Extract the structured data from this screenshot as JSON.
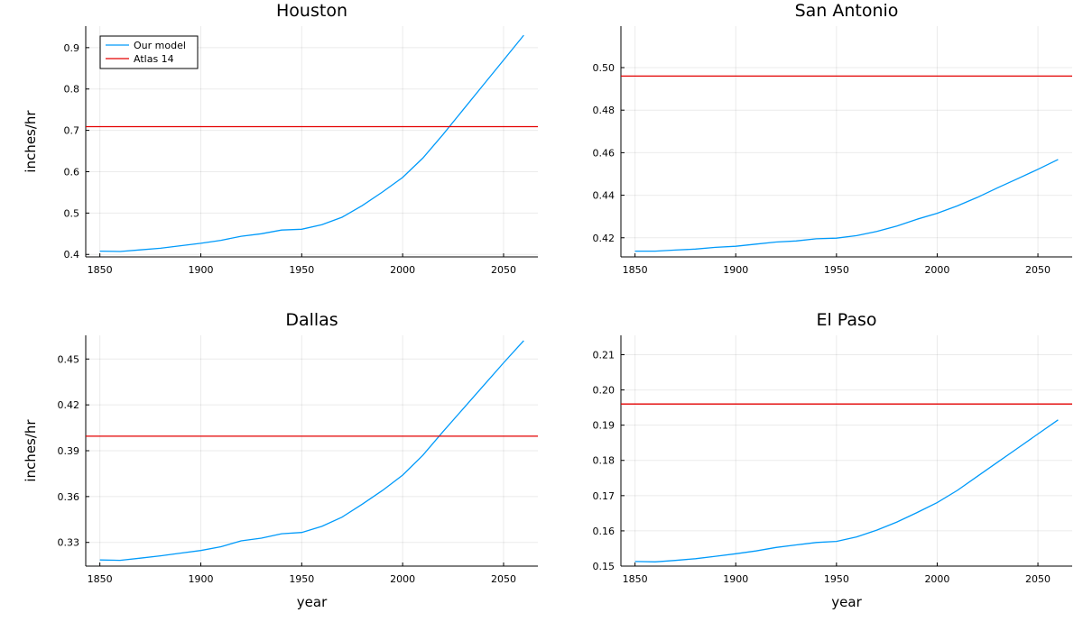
{
  "chart_data": [
    {
      "type": "line",
      "title": "Houston",
      "xlabel": "",
      "ylabel": "inches/hr",
      "xlim": [
        1843,
        2067
      ],
      "ylim": [
        0.394,
        0.952
      ],
      "xticks": [
        1850,
        1900,
        1950,
        2000,
        2050
      ],
      "yticks": [
        0.4,
        0.5,
        0.6,
        0.7,
        0.8,
        0.9
      ],
      "ytick_labels": [
        "0.4",
        "0.5",
        "0.6",
        "0.7",
        "0.8",
        "0.9"
      ],
      "legend": {
        "show": true,
        "placement": "top-left"
      },
      "series": [
        {
          "name": "Our model",
          "color": "#009AFA",
          "x": [
            1850,
            1860,
            1870,
            1880,
            1890,
            1900,
            1910,
            1920,
            1930,
            1940,
            1950,
            1960,
            1970,
            1980,
            1990,
            2000,
            2010,
            2020,
            2030,
            2040,
            2050,
            2060
          ],
          "y": [
            0.408,
            0.407,
            0.411,
            0.415,
            0.421,
            0.427,
            0.434,
            0.444,
            0.45,
            0.459,
            0.461,
            0.472,
            0.49,
            0.518,
            0.551,
            0.586,
            0.633,
            0.69,
            0.75,
            0.81,
            0.87,
            0.93
          ]
        },
        {
          "name": "Atlas 14",
          "color": "#E30000",
          "x": [
            1843,
            2067
          ],
          "y": [
            0.709,
            0.709
          ]
        }
      ]
    },
    {
      "type": "line",
      "title": "San Antonio",
      "xlabel": "",
      "ylabel": "",
      "xlim": [
        1843,
        2067
      ],
      "ylim": [
        0.411,
        0.5195
      ],
      "xticks": [
        1850,
        1900,
        1950,
        2000,
        2050
      ],
      "yticks": [
        0.42,
        0.44,
        0.46,
        0.48,
        0.5
      ],
      "ytick_labels": [
        "0.42",
        "0.44",
        "0.46",
        "0.48",
        "0.50"
      ],
      "legend": {
        "show": false
      },
      "series": [
        {
          "name": "",
          "color": "#009AFA",
          "x": [
            1850,
            1860,
            1870,
            1880,
            1890,
            1900,
            1910,
            1920,
            1930,
            1940,
            1950,
            1960,
            1970,
            1980,
            1990,
            2000,
            2010,
            2020,
            2030,
            2040,
            2050,
            2060
          ],
          "y": [
            0.4137,
            0.4137,
            0.4142,
            0.4147,
            0.4155,
            0.416,
            0.417,
            0.418,
            0.4185,
            0.4195,
            0.4198,
            0.421,
            0.423,
            0.4255,
            0.4287,
            0.4315,
            0.435,
            0.439,
            0.4435,
            0.4478,
            0.4522,
            0.4568
          ]
        },
        {
          "name": "",
          "color": "#E30000",
          "x": [
            1843,
            2067
          ],
          "y": [
            0.496,
            0.496
          ]
        }
      ]
    },
    {
      "type": "line",
      "title": "Dallas",
      "xlabel": "year",
      "ylabel": "inches/hr",
      "xlim": [
        1843,
        2067
      ],
      "ylim": [
        0.3145,
        0.4655
      ],
      "xticks": [
        1850,
        1900,
        1950,
        2000,
        2050
      ],
      "yticks": [
        0.33,
        0.36,
        0.39,
        0.42,
        0.45
      ],
      "ytick_labels": [
        "0.33",
        "0.36",
        "0.39",
        "0.42",
        "0.45"
      ],
      "legend": {
        "show": false
      },
      "series": [
        {
          "name": "",
          "color": "#009AFA",
          "x": [
            1850,
            1860,
            1870,
            1880,
            1890,
            1900,
            1910,
            1920,
            1930,
            1940,
            1950,
            1960,
            1970,
            1980,
            1990,
            2000,
            2010,
            2020,
            2030,
            2040,
            2050,
            2060
          ],
          "y": [
            0.3185,
            0.3183,
            0.3197,
            0.3212,
            0.323,
            0.3247,
            0.3272,
            0.331,
            0.3328,
            0.3357,
            0.3365,
            0.3405,
            0.3465,
            0.355,
            0.364,
            0.374,
            0.387,
            0.4025,
            0.4175,
            0.4325,
            0.4475,
            0.462
          ]
        },
        {
          "name": "",
          "color": "#E30000",
          "x": [
            1843,
            2067
          ],
          "y": [
            0.3995,
            0.3995
          ]
        }
      ]
    },
    {
      "type": "line",
      "title": "El Paso",
      "xlabel": "year",
      "ylabel": "",
      "xlim": [
        1843,
        2067
      ],
      "ylim": [
        0.15,
        0.2155
      ],
      "xticks": [
        1850,
        1900,
        1950,
        2000,
        2050
      ],
      "yticks": [
        0.15,
        0.16,
        0.17,
        0.18,
        0.19,
        0.2,
        0.21
      ],
      "ytick_labels": [
        "0.15",
        "0.16",
        "0.17",
        "0.18",
        "0.19",
        "0.20",
        "0.21"
      ],
      "legend": {
        "show": false
      },
      "series": [
        {
          "name": "",
          "color": "#009AFA",
          "x": [
            1850,
            1860,
            1870,
            1880,
            1890,
            1900,
            1910,
            1920,
            1930,
            1940,
            1950,
            1960,
            1970,
            1980,
            1990,
            2000,
            2010,
            2020,
            2030,
            2040,
            2050,
            2060
          ],
          "y": [
            0.1513,
            0.1512,
            0.1516,
            0.1521,
            0.1528,
            0.1535,
            0.1543,
            0.1553,
            0.156,
            0.1567,
            0.157,
            0.1583,
            0.1602,
            0.1625,
            0.1652,
            0.168,
            0.1715,
            0.1755,
            0.1795,
            0.1835,
            0.1875,
            0.1915
          ]
        },
        {
          "name": "",
          "color": "#E30000",
          "x": [
            1843,
            2067
          ],
          "y": [
            0.196,
            0.196
          ]
        }
      ]
    }
  ]
}
